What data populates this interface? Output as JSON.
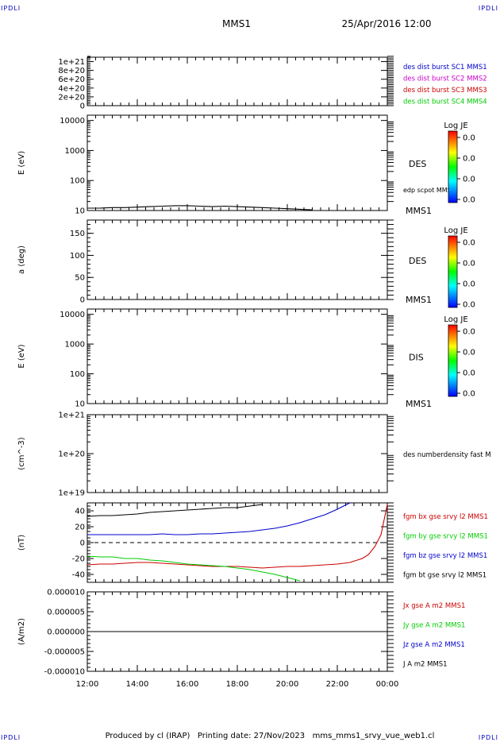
{
  "corner_marks": {
    "top_left": "IPDLI",
    "top_right": "IPDLI",
    "bottom_left": "IPDLI",
    "bottom_right": "IPDLI"
  },
  "header": {
    "spacecraft": "MMS1",
    "datetime": "25/Apr/2016 12:00"
  },
  "footer": {
    "text": "Produced by cl (IRAP)   Printing date: 27/Nov/2023   mms_mms1_srvy_vue_web1.cl"
  },
  "colors": {
    "black": "#000000",
    "blue": "#0000cc",
    "magenta": "#cc00cc",
    "red": "#cc0000",
    "green": "#00cc00"
  },
  "time_axis": {
    "start": "12:00",
    "end": "00:00",
    "tick_labels": [
      "12:00",
      "14:00",
      "16:00",
      "18:00",
      "20:00",
      "22:00",
      "00:00"
    ]
  },
  "colorbar": {
    "title": "Log JE",
    "tick_labels": [
      "0.0",
      "0.0",
      "0.0",
      "0.0"
    ]
  },
  "panels": [
    {
      "id": "burst",
      "ylabel": "",
      "scale": "linear",
      "ylim": [
        0,
        1.1e+21
      ],
      "tick_values": [
        0,
        2e+20,
        4e+20,
        6e+20,
        8e+20,
        1e+21
      ],
      "tick_labels": [
        "0",
        "2e+20",
        "4e+20",
        "6e+20",
        "8e+20",
        "1e+21"
      ],
      "dashed_zero": true,
      "right_labels": [
        {
          "text": "des dist burst SC1 MMS1",
          "color": "#0000cc"
        },
        {
          "text": "des dist burst SC2 MMS2",
          "color": "#cc00cc"
        },
        {
          "text": "des dist burst SC3 MMS3",
          "color": "#cc0000"
        },
        {
          "text": "des dist burst SC4 MMS4",
          "color": "#00cc00"
        }
      ]
    },
    {
      "id": "des-energy",
      "ylabel": "E (eV)",
      "scale": "log",
      "ylim": [
        10,
        15000
      ],
      "tick_values": [
        10,
        100,
        1000,
        10000
      ],
      "tick_labels": [
        "10",
        "100",
        "1000",
        "10000"
      ],
      "species": "DES",
      "spacecraft_tag": "MMS1",
      "overlay_label": "edp scpot MMS1",
      "has_colorbar": true
    },
    {
      "id": "des-pitch",
      "ylabel": "a (deg)",
      "scale": "linear",
      "ylim": [
        0,
        180
      ],
      "tick_values": [
        0,
        50,
        100,
        150
      ],
      "tick_labels": [
        "0",
        "50",
        "100",
        "150"
      ],
      "species": "DES",
      "spacecraft_tag": "MMS1",
      "has_colorbar": true
    },
    {
      "id": "dis-energy",
      "ylabel": "E (eV)",
      "scale": "log",
      "ylim": [
        10,
        15000
      ],
      "tick_values": [
        10,
        100,
        1000,
        10000
      ],
      "tick_labels": [
        "10",
        "100",
        "1000",
        "10000"
      ],
      "species": "DIS",
      "spacecraft_tag": "MMS1",
      "has_colorbar": true
    },
    {
      "id": "density",
      "ylabel": "(cm^-3)",
      "scale": "log",
      "ylim": [
        1e+19,
        1e+21
      ],
      "tick_values": [
        1e+19,
        1e+20,
        1e+21
      ],
      "tick_labels": [
        "1e+19",
        "1e+20",
        "1e+21"
      ],
      "right_labels": [
        {
          "text": "des numberdensity fast M",
          "color": "#000000"
        }
      ]
    },
    {
      "id": "fgm",
      "ylabel": "(nT)",
      "scale": "linear",
      "ylim": [
        -50,
        50
      ],
      "tick_values": [
        -40,
        -20,
        0,
        20,
        40
      ],
      "tick_labels": [
        "-40",
        "-20",
        "0",
        "20",
        "40"
      ],
      "dashed_zero": true,
      "right_labels": [
        {
          "text": "fgm bx gse srvy l2 MMS1",
          "color": "#cc0000"
        },
        {
          "text": "fgm by gse srvy l2 MMS1",
          "color": "#00cc00"
        },
        {
          "text": "fgm bz gse srvy l2 MMS1",
          "color": "#0000cc"
        },
        {
          "text": "fgm bt gse srvy l2 MMS1",
          "color": "#000000"
        }
      ]
    },
    {
      "id": "current",
      "ylabel": "(A/m2)",
      "scale": "linear",
      "ylim": [
        -1e-05,
        1e-05
      ],
      "tick_values": [
        -1e-05,
        -5e-06,
        0,
        5e-06,
        1e-05
      ],
      "tick_labels": [
        "-0.000010",
        "-0.000005",
        "0.000000",
        "0.000005",
        "0.000010"
      ],
      "right_labels": [
        {
          "text": "Jx gse A m2 MMS1",
          "color": "#cc0000"
        },
        {
          "text": "Jy gse A m2 MMS1",
          "color": "#00cc00"
        },
        {
          "text": "Jz gse A m2 MMS1",
          "color": "#0000cc"
        },
        {
          "text": "J A m2 MMS1",
          "color": "#000000"
        }
      ]
    }
  ],
  "chart_data": [
    {
      "type": "line",
      "panel": "des-energy",
      "x_unit": "hours after 12:00",
      "series": [
        {
          "name": "edp scpot MMS1",
          "color": "#000000",
          "x": [
            0,
            0.5,
            1,
            1.5,
            2,
            2.5,
            3,
            3.5,
            4,
            4.5,
            5,
            5.5,
            6,
            6.5,
            7,
            7.5,
            8,
            8.5,
            9
          ],
          "y": [
            12,
            12,
            12.5,
            12.5,
            13,
            13.5,
            14,
            14.5,
            14.5,
            14,
            13.5,
            14,
            13.5,
            13,
            12.5,
            12,
            11.5,
            11,
            10.5
          ]
        }
      ]
    },
    {
      "type": "line",
      "panel": "fgm",
      "x_unit": "hours after 12:00",
      "series": [
        {
          "name": "fgm bx gse srvy l2 MMS1",
          "color": "#cc0000",
          "x": [
            0,
            0.5,
            1,
            1.5,
            2,
            2.5,
            3,
            3.5,
            4,
            4.5,
            5,
            5.5,
            6,
            6.5,
            7,
            7.5,
            8,
            8.5,
            9,
            9.5,
            10,
            10.5,
            11,
            11.25,
            11.5,
            11.75,
            12
          ],
          "y": [
            -28,
            -27,
            -27,
            -26,
            -25,
            -25,
            -26,
            -27,
            -28,
            -29,
            -30,
            -30,
            -30,
            -31,
            -32,
            -31,
            -30,
            -30,
            -29,
            -28,
            -27,
            -25,
            -20,
            -15,
            -5,
            10,
            48
          ]
        },
        {
          "name": "fgm by gse srvy l2 MMS1",
          "color": "#00cc00",
          "x": [
            0,
            0.5,
            1,
            1.5,
            2,
            2.5,
            3,
            3.5,
            4,
            4.5,
            5,
            5.5,
            6,
            6.5,
            7,
            7.5,
            8,
            8.5
          ],
          "y": [
            -17,
            -18,
            -18,
            -20,
            -20,
            -22,
            -23,
            -25,
            -27,
            -28,
            -29,
            -30,
            -32,
            -34,
            -37,
            -40,
            -44,
            -48
          ]
        },
        {
          "name": "fgm bz gse srvy l2 MMS1",
          "color": "#0000cc",
          "x": [
            0,
            0.5,
            1,
            1.5,
            2,
            2.5,
            3,
            3.5,
            4,
            4.5,
            5,
            5.5,
            6,
            6.5,
            7,
            7.5,
            8,
            8.5,
            9,
            9.5,
            10,
            10.5
          ],
          "y": [
            10,
            10,
            10,
            10,
            10,
            10,
            11,
            10,
            10,
            11,
            11,
            12,
            13,
            14,
            16,
            18,
            21,
            25,
            30,
            35,
            42,
            50
          ]
        },
        {
          "name": "fgm bt gse srvy l2 MMS1",
          "color": "#000000",
          "x": [
            0,
            0.5,
            1,
            1.5,
            2,
            2.5,
            3,
            3.5,
            4,
            4.5,
            5,
            5.5,
            6,
            6.5,
            7
          ],
          "y": [
            33,
            34,
            34,
            35,
            36,
            38,
            39,
            40,
            41,
            42,
            43,
            44,
            44,
            46,
            48
          ]
        }
      ]
    },
    {
      "type": "line",
      "panel": "current",
      "x_unit": "hours after 12:00",
      "series": [
        {
          "name": "J A m2 MMS1",
          "color": "#000000",
          "x": [
            0,
            12
          ],
          "y": [
            0,
            0
          ]
        }
      ]
    }
  ]
}
